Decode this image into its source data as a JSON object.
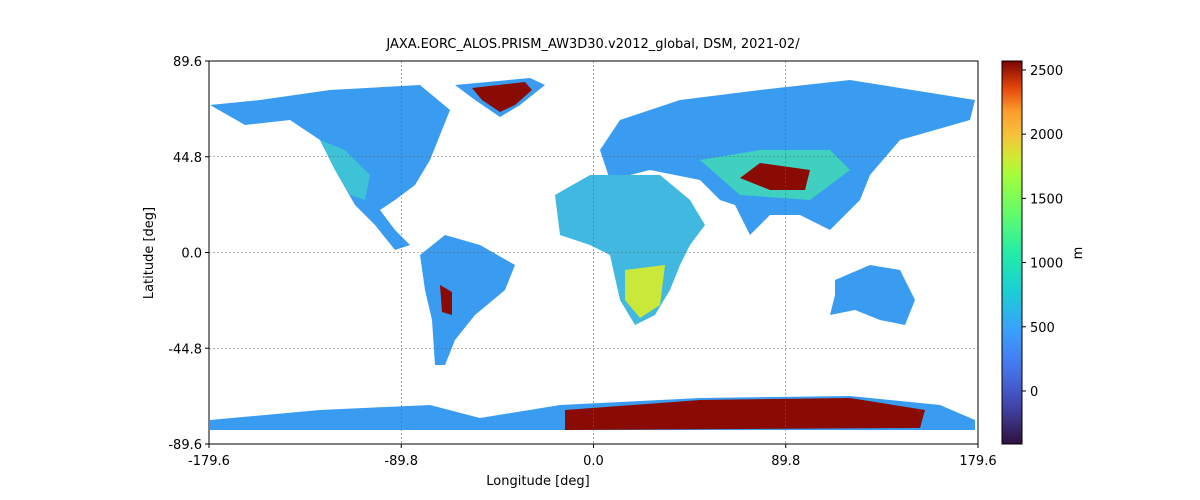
{
  "chart_data": {
    "type": "raster-map",
    "title": "JAXA.EORC_ALOS.PRISM_AW3D30.v2012_global, DSM, 2021-02/",
    "x_label": "Longitude [deg]",
    "y_label": "Latitude [deg]",
    "xlim": [
      -179.6,
      179.6
    ],
    "ylim": [
      -89.6,
      89.6
    ],
    "xticks": [
      -179.6,
      -89.8,
      {
        "value": 0,
        "label": "0.0"
      },
      89.8,
      179.6
    ],
    "yticks": [
      -89.6,
      -44.8,
      {
        "value": 0,
        "label": "0.0"
      },
      44.8,
      89.6
    ],
    "grid": true,
    "colorbar": {
      "label": "m",
      "lim": [
        -413,
        2570
      ],
      "ticks": [
        0,
        500,
        1000,
        1500,
        2000,
        2500
      ]
    }
  }
}
